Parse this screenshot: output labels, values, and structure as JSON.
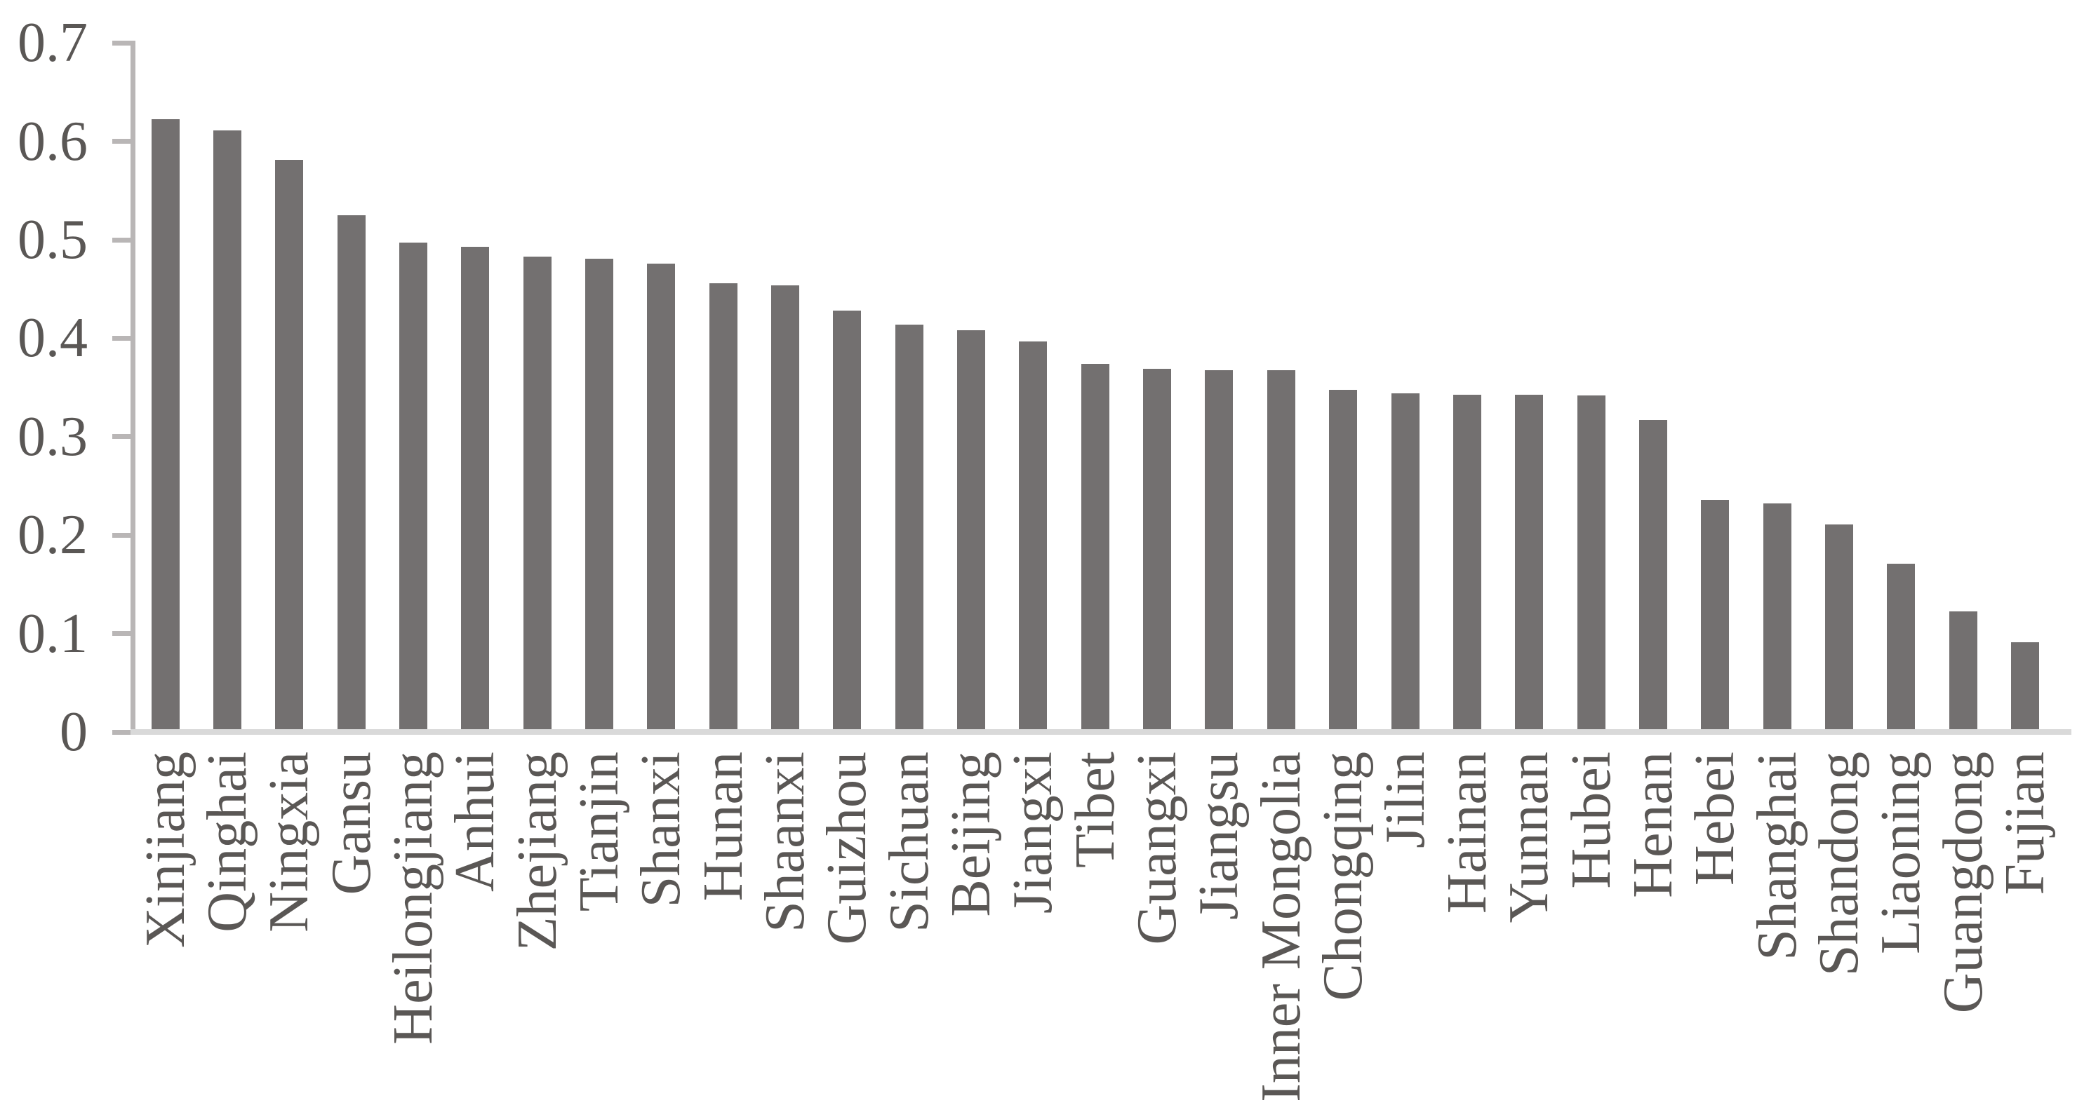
{
  "chart_data": {
    "type": "bar",
    "title": "",
    "xlabel": "",
    "ylabel": "",
    "ylim": [
      0,
      0.7
    ],
    "grid": "off",
    "legend": "none",
    "y_tick_labels": [
      "0.7",
      "0.6",
      "0.5",
      "0.4",
      "0.3",
      "0.2",
      "0.1",
      "0"
    ],
    "y_tick_values": [
      0.7,
      0.6,
      0.5,
      0.4,
      0.3,
      0.2,
      0.1,
      0
    ],
    "categories": [
      "Xinjiang",
      "Qinghai",
      "Ningxia",
      "Gansu",
      "Heilongjiang",
      "Anhui",
      "Zhejiang",
      "Tianjin",
      "Shanxi",
      "Hunan",
      "Shaanxi",
      "Guizhou",
      "Sichuan",
      "Beijing",
      "Jiangxi",
      "Tibet",
      "Guangxi",
      "Jiangsu",
      "Inner Mongolia",
      "Chongqing",
      "Jilin",
      "Hainan",
      "Yunnan",
      "Hubei",
      "Henan",
      "Hebei",
      "Shanghai",
      "Shandong",
      "Liaoning",
      "Guangdong",
      "Fujian"
    ],
    "values": [
      0.62,
      0.608,
      0.578,
      0.522,
      0.494,
      0.49,
      0.48,
      0.478,
      0.473,
      0.453,
      0.451,
      0.425,
      0.411,
      0.405,
      0.394,
      0.371,
      0.366,
      0.365,
      0.365,
      0.345,
      0.341,
      0.34,
      0.34,
      0.339,
      0.314,
      0.233,
      0.229,
      0.208,
      0.168,
      0.12,
      0.088
    ],
    "colors": {
      "bar": "#737070",
      "axis": "#b9b6b6",
      "baseline": "#d9d9d9",
      "text": "#5a5755"
    }
  }
}
